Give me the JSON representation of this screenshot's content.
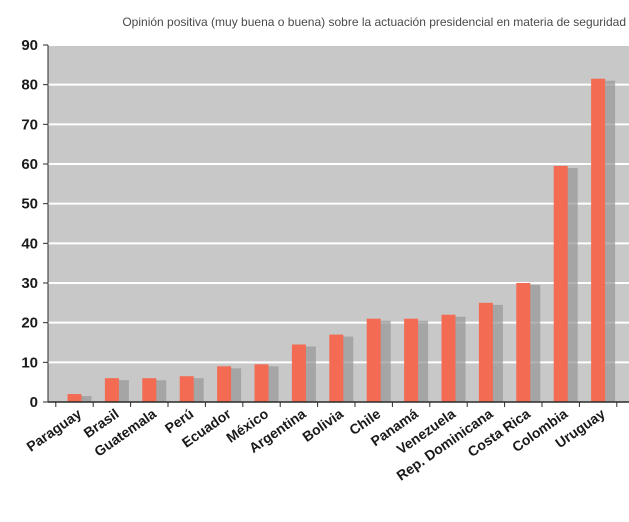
{
  "chart_data": {
    "type": "bar",
    "title": "Opinión positiva (muy buena o buena) sobre la actuación presidencial en materia de seguridad",
    "xlabel": "",
    "ylabel": "",
    "ylim": [
      0,
      90
    ],
    "yticks": [
      0,
      10,
      20,
      30,
      40,
      50,
      60,
      70,
      80,
      90
    ],
    "grid": true,
    "legend": "none",
    "categories": [
      "Paraguay",
      "Brasil",
      "Guatemala",
      "Perú",
      "Ecuador",
      "México",
      "Argentina",
      "Bolivia",
      "Chile",
      "Panamá",
      "Venezuela",
      "Rep. Dominicana",
      "Costa Rica",
      "Colombia",
      "Uruguay"
    ],
    "values": [
      2,
      6,
      6,
      6.5,
      9,
      9.5,
      14.5,
      17,
      21,
      21,
      22,
      25,
      30,
      59.5,
      81.5
    ],
    "colors": {
      "bar": "#f26b52",
      "background": "#c8c8c8",
      "grid": "#ffffff",
      "axis": "#2b2b2b"
    }
  }
}
